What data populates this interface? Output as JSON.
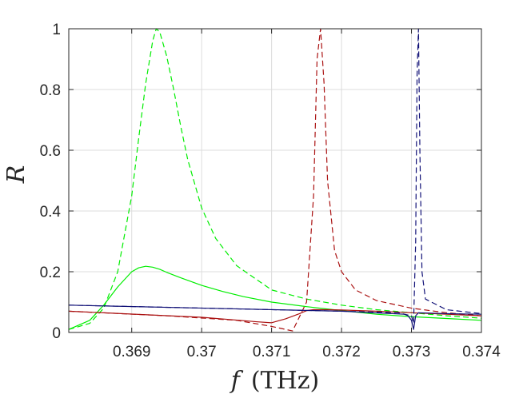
{
  "chart_data": {
    "type": "line",
    "xlabel_var": "f",
    "xlabel_unit": "(THz)",
    "ylabel": "R",
    "xlim": [
      0.3681,
      0.374
    ],
    "ylim": [
      0,
      1
    ],
    "xticks": [
      0.369,
      0.37,
      0.371,
      0.372,
      0.373,
      0.374
    ],
    "xtick_labels": [
      "0.369",
      "0.37",
      "0.371",
      "0.372",
      "0.373",
      "0.374"
    ],
    "yticks": [
      0,
      0.2,
      0.4,
      0.6,
      0.8,
      1
    ],
    "ytick_labels": [
      "0",
      "0.2",
      "0.4",
      "0.6",
      "0.8",
      "1"
    ],
    "grid": true,
    "series": [
      {
        "color": "#00ee00",
        "dash": "dashed",
        "x": [
          0.3681,
          0.3684,
          0.3686,
          0.3688,
          0.369,
          0.3691,
          0.3692,
          0.3693,
          0.36935,
          0.3694,
          0.3695,
          0.3696,
          0.3697,
          0.3698,
          0.37,
          0.3702,
          0.3705,
          0.371,
          0.3715,
          0.372,
          0.3725,
          0.373,
          0.3735,
          0.374
        ],
        "y": [
          0.01,
          0.03,
          0.08,
          0.2,
          0.45,
          0.64,
          0.82,
          0.96,
          1.0,
          0.99,
          0.91,
          0.8,
          0.68,
          0.57,
          0.41,
          0.31,
          0.22,
          0.14,
          0.11,
          0.09,
          0.075,
          0.065,
          0.055,
          0.047
        ]
      },
      {
        "color": "#00ee00",
        "dash": "solid",
        "x": [
          0.3681,
          0.3684,
          0.3686,
          0.3688,
          0.369,
          0.3691,
          0.3692,
          0.3693,
          0.3694,
          0.3695,
          0.3697,
          0.37,
          0.3703,
          0.3706,
          0.371,
          0.3715,
          0.372,
          0.3725,
          0.373,
          0.3735,
          0.374
        ],
        "y": [
          0.01,
          0.04,
          0.09,
          0.15,
          0.2,
          0.213,
          0.218,
          0.215,
          0.208,
          0.198,
          0.18,
          0.155,
          0.135,
          0.118,
          0.1,
          0.085,
          0.072,
          0.06,
          0.052,
          0.046,
          0.04
        ]
      },
      {
        "color": "#aa1111",
        "dash": "dashed",
        "x": [
          0.3681,
          0.3695,
          0.3705,
          0.371,
          0.3713,
          0.3715,
          0.3716,
          0.37165,
          0.3717,
          0.37175,
          0.3718,
          0.3719,
          0.372,
          0.3722,
          0.3725,
          0.373,
          0.3735,
          0.374
        ],
        "y": [
          0.07,
          0.055,
          0.04,
          0.02,
          0.005,
          0.1,
          0.45,
          0.9,
          1.0,
          0.82,
          0.5,
          0.27,
          0.2,
          0.14,
          0.105,
          0.08,
          0.065,
          0.055
        ]
      },
      {
        "color": "#aa1111",
        "dash": "solid",
        "x": [
          0.3681,
          0.37,
          0.3708,
          0.371,
          0.3712,
          0.3714,
          0.3715,
          0.3716,
          0.3718,
          0.372,
          0.3725,
          0.373,
          0.3735,
          0.374
        ],
        "y": [
          0.07,
          0.05,
          0.035,
          0.032,
          0.045,
          0.062,
          0.072,
          0.075,
          0.075,
          0.074,
          0.07,
          0.065,
          0.06,
          0.055
        ]
      },
      {
        "color": "#111177",
        "dash": "dashed",
        "x": [
          0.3681,
          0.372,
          0.3728,
          0.373,
          0.37303,
          0.37306,
          0.37308,
          0.3731,
          0.37312,
          0.37315,
          0.3732,
          0.3735,
          0.374
        ],
        "y": [
          0.09,
          0.07,
          0.065,
          0.055,
          0.03,
          0.3,
          0.85,
          1.0,
          0.6,
          0.2,
          0.11,
          0.075,
          0.062
        ]
      },
      {
        "color": "#111177",
        "dash": "solid",
        "x": [
          0.3681,
          0.372,
          0.3729,
          0.37295,
          0.373,
          0.37303,
          0.37306,
          0.3731,
          0.3735,
          0.374
        ],
        "y": [
          0.09,
          0.07,
          0.06,
          0.055,
          0.04,
          0.01,
          0.055,
          0.065,
          0.062,
          0.06
        ]
      }
    ]
  }
}
